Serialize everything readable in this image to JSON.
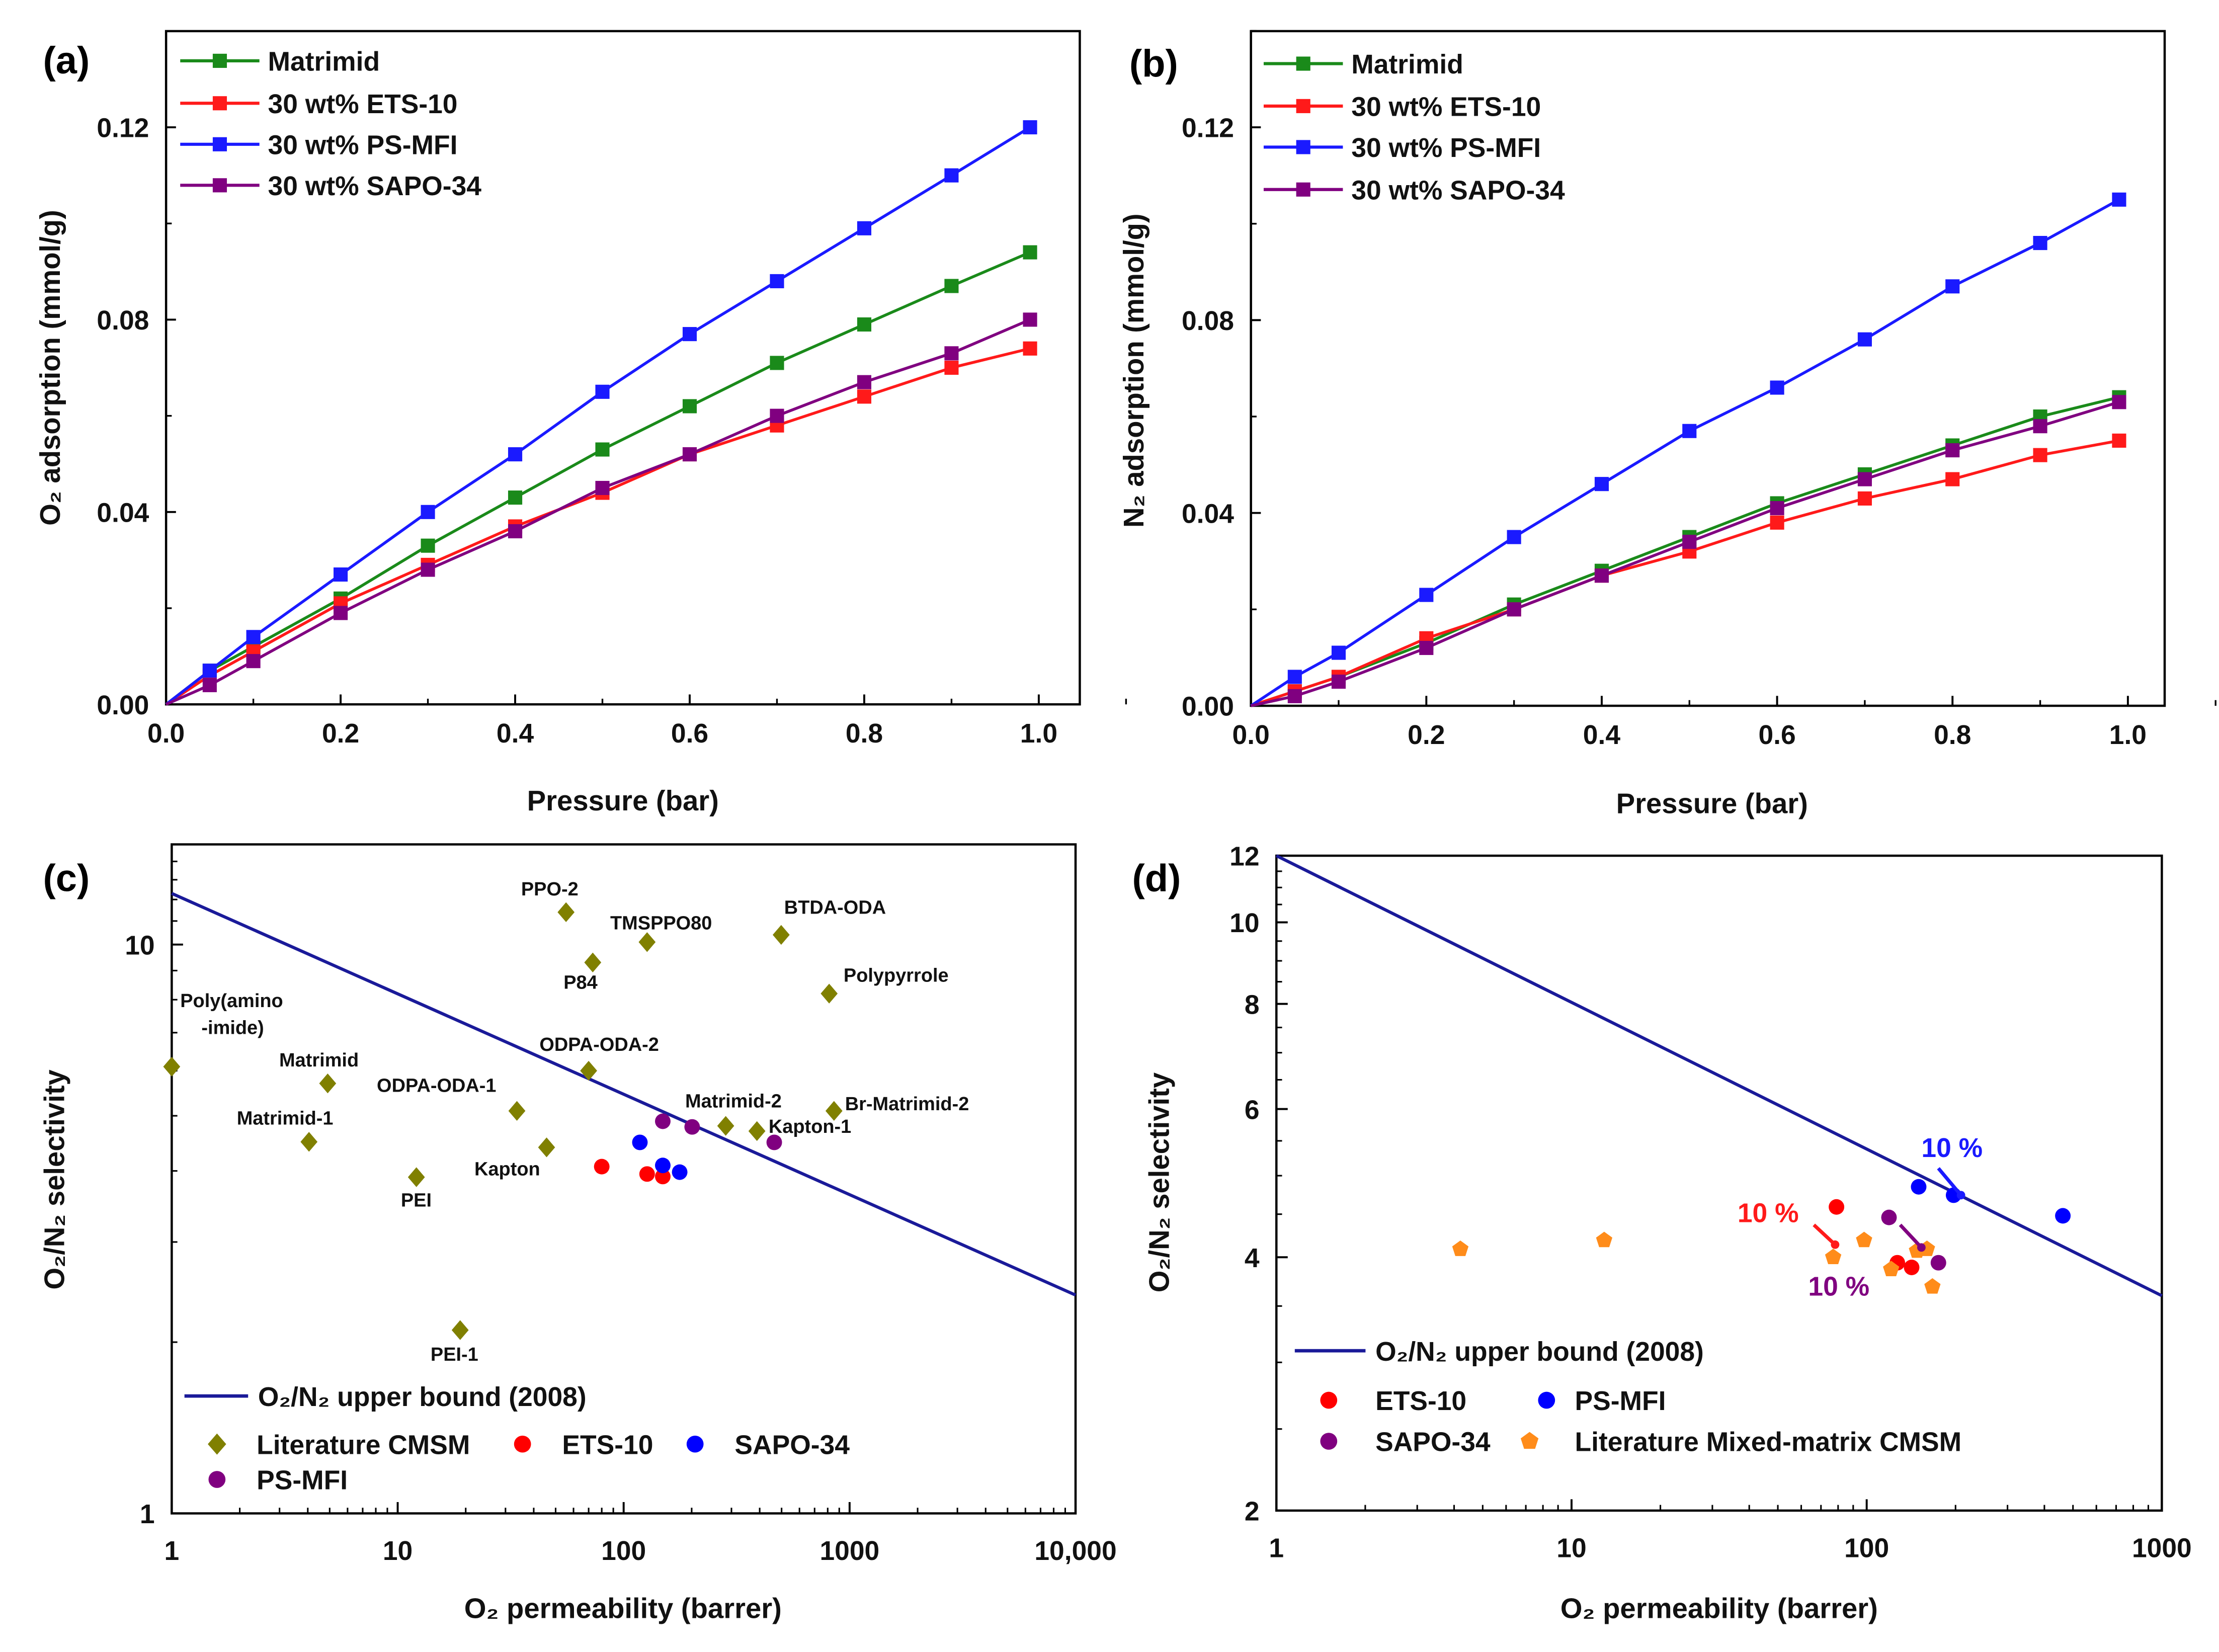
{
  "chart_data": [
    {
      "panel": "(a)",
      "type": "line",
      "xlabel": "Pressure (bar)",
      "ylabel": "O₂ adsorption (mmol/g)",
      "xlim": [
        0,
        1.05
      ],
      "ylim": [
        0,
        0.14
      ],
      "xticks": [
        "0.0",
        "0.2",
        "0.4",
        "0.6",
        "0.8",
        "1.0"
      ],
      "yticks": [
        "0.00",
        "0.04",
        "0.08",
        "0.12"
      ],
      "legend_position": "top-left",
      "x": [
        0,
        0.05,
        0.1,
        0.2,
        0.3,
        0.4,
        0.5,
        0.6,
        0.7,
        0.8,
        0.9,
        0.99
      ],
      "series": [
        {
          "name": "Matrimid",
          "color": "#1a8a1a",
          "values": [
            0,
            0.007,
            0.012,
            0.022,
            0.033,
            0.043,
            0.053,
            0.062,
            0.071,
            0.079,
            0.087,
            0.094
          ]
        },
        {
          "name": "30 wt% ETS-10",
          "color": "#ff1a1a",
          "values": [
            0,
            0.006,
            0.011,
            0.021,
            0.029,
            0.037,
            0.044,
            0.052,
            0.058,
            0.064,
            0.07,
            0.074
          ]
        },
        {
          "name": "30 wt% PS-MFI",
          "color": "#1a1aff",
          "values": [
            0,
            0.007,
            0.014,
            0.027,
            0.04,
            0.052,
            0.065,
            0.077,
            0.088,
            0.099,
            0.11,
            0.12
          ]
        },
        {
          "name": "30 wt% SAPO-34",
          "color": "#800080",
          "values": [
            0,
            0.004,
            0.009,
            0.019,
            0.028,
            0.036,
            0.045,
            0.052,
            0.06,
            0.067,
            0.073,
            0.08
          ]
        }
      ]
    },
    {
      "panel": "(b)",
      "type": "line",
      "xlabel": "Pressure (bar)",
      "ylabel": "N₂ adsorption (mmol/g)",
      "xlim": [
        0,
        1.04
      ],
      "ylim": [
        0,
        0.14
      ],
      "xticks": [
        "0.0",
        "0.2",
        "0.4",
        "0.6",
        "0.8",
        "1.0"
      ],
      "yticks": [
        "0.00",
        "0.04",
        "0.08",
        "0.12"
      ],
      "legend_position": "top-left",
      "x": [
        0,
        0.05,
        0.1,
        0.2,
        0.3,
        0.4,
        0.5,
        0.6,
        0.7,
        0.8,
        0.9,
        0.99
      ],
      "series": [
        {
          "name": "Matrimid",
          "color": "#1a8a1a",
          "values": [
            0,
            0.003,
            0.006,
            0.013,
            0.021,
            0.028,
            0.035,
            0.042,
            0.048,
            0.054,
            0.06,
            0.064
          ]
        },
        {
          "name": "30 wt% ETS-10",
          "color": "#ff1a1a",
          "values": [
            0,
            0.003,
            0.006,
            0.014,
            0.02,
            0.027,
            0.032,
            0.038,
            0.043,
            0.047,
            0.052,
            0.055
          ]
        },
        {
          "name": "30 wt% PS-MFI",
          "color": "#1a1aff",
          "values": [
            0,
            0.006,
            0.011,
            0.023,
            0.035,
            0.046,
            0.057,
            0.066,
            0.076,
            0.087,
            0.096,
            0.105
          ]
        },
        {
          "name": "30 wt% SAPO-34",
          "color": "#800080",
          "values": [
            0,
            0.002,
            0.005,
            0.012,
            0.02,
            0.027,
            0.034,
            0.041,
            0.047,
            0.053,
            0.058,
            0.063
          ]
        }
      ]
    },
    {
      "panel": "(c)",
      "type": "scatter",
      "xscale": "log",
      "yscale": "log",
      "xlabel": "O₂ permeability (barrer)",
      "ylabel": "O₂/N₂ selectivity",
      "xlim": [
        1,
        10000
      ],
      "ylim": [
        1,
        15
      ],
      "xticks": [
        "1",
        "10",
        "100",
        "1000",
        "10,000"
      ],
      "yticks": [
        "1",
        "10"
      ],
      "legend_position": "bottom-left",
      "upper_bound": {
        "name": "O₂/N₂ upper bound (2008)",
        "color": "#1a1a99",
        "x": [
          1,
          10000
        ],
        "y": [
          12.3,
          2.42
        ]
      },
      "series": [
        {
          "name": "Literature CMSM",
          "color": "#808000",
          "marker": "diamond",
          "points": [
            {
              "label": "Poly(amino\n-imide)",
              "x": 1,
              "y": 6.1
            },
            {
              "label": "Matrimid",
              "x": 4.9,
              "y": 5.7
            },
            {
              "label": "Matrimid-1",
              "x": 4.05,
              "y": 4.5
            },
            {
              "label": "PEI",
              "x": 12.1,
              "y": 3.9
            },
            {
              "label": "ODPA-ODA-1",
              "x": 33.7,
              "y": 5.1
            },
            {
              "label": "Kapton",
              "x": 45.6,
              "y": 4.4
            },
            {
              "label": "ODPA-ODA-2",
              "x": 70,
              "y": 6.0
            },
            {
              "label": "PPO-2",
              "x": 55.6,
              "y": 11.4
            },
            {
              "label": "P84",
              "x": 73,
              "y": 9.3
            },
            {
              "label": "TMSPPO80",
              "x": 127,
              "y": 10.1
            },
            {
              "label": "BTDA-ODA",
              "x": 498,
              "y": 10.4
            },
            {
              "label": "Polypyrrole",
              "x": 812,
              "y": 8.2
            },
            {
              "label": "Matrimid-2",
              "x": 283,
              "y": 4.8
            },
            {
              "label": "Kapton-1",
              "x": 389,
              "y": 4.7
            },
            {
              "label": "Br-Matrimid-2",
              "x": 853,
              "y": 5.1
            },
            {
              "label": "PEI-1",
              "x": 18.9,
              "y": 2.1
            }
          ]
        },
        {
          "name": "ETS-10",
          "color": "#ff0000",
          "marker": "circle",
          "points": [
            {
              "x": 80,
              "y": 4.07
            },
            {
              "x": 127,
              "y": 3.95
            },
            {
              "x": 149,
              "y": 3.91
            }
          ]
        },
        {
          "name": "SAPO-34",
          "color": "#0000ff",
          "marker": "circle",
          "points": [
            {
              "x": 118,
              "y": 4.49
            },
            {
              "x": 149,
              "y": 4.09
            },
            {
              "x": 177,
              "y": 3.98
            }
          ]
        },
        {
          "name": "PS-MFI",
          "color": "#800080",
          "marker": "circle",
          "points": [
            {
              "x": 149,
              "y": 4.89
            },
            {
              "x": 201,
              "y": 4.78
            },
            {
              "x": 464,
              "y": 4.49
            }
          ]
        }
      ]
    },
    {
      "panel": "(d)",
      "type": "scatter",
      "xscale": "log",
      "yscale": "log",
      "xlabel": "O₂ permeability (barrer)",
      "ylabel": "O₂/N₂ selectivity",
      "xlim": [
        1,
        1000
      ],
      "ylim": [
        2,
        12
      ],
      "xticks": [
        "1",
        "10",
        "100",
        "1000"
      ],
      "yticks": [
        "2",
        "4",
        "6",
        "8",
        "10",
        "12"
      ],
      "legend_position": "bottom-left",
      "upper_bound": {
        "name": "O₂/N₂ upper bound (2008)",
        "color": "#1a1a99",
        "x": [
          1,
          1000
        ],
        "y": [
          12,
          3.6
        ]
      },
      "series": [
        {
          "name": "ETS-10",
          "color": "#ff0000",
          "marker": "circle",
          "points": [
            {
              "x": 79,
              "y": 4.59
            },
            {
              "x": 127,
              "y": 3.94
            },
            {
              "x": 142,
              "y": 3.89
            }
          ]
        },
        {
          "name": "PS-MFI",
          "color": "#0000ff",
          "marker": "circle",
          "points": [
            {
              "x": 150,
              "y": 4.85
            },
            {
              "x": 197,
              "y": 4.74
            },
            {
              "x": 462,
              "y": 4.48
            }
          ]
        },
        {
          "name": "SAPO-34",
          "color": "#800080",
          "marker": "circle",
          "points": [
            {
              "x": 119,
              "y": 4.46
            },
            {
              "x": 175,
              "y": 3.94
            }
          ]
        },
        {
          "name": "Literature Mixed-matrix CMSM",
          "color": "#ff8c1a",
          "marker": "pentagon",
          "points": [
            {
              "x": 4.2,
              "y": 4.09
            },
            {
              "x": 12.9,
              "y": 4.19
            },
            {
              "x": 77,
              "y": 4.0
            },
            {
              "x": 98,
              "y": 4.19
            },
            {
              "x": 121,
              "y": 3.87
            },
            {
              "x": 148,
              "y": 4.07
            },
            {
              "x": 160,
              "y": 4.09
            },
            {
              "x": 167,
              "y": 3.69
            }
          ]
        }
      ],
      "annotations": [
        {
          "text": "10 %",
          "color": "#1a1aff"
        },
        {
          "text": "10 %",
          "color": "#ff1a1a"
        },
        {
          "text": "10 %",
          "color": "#800080"
        }
      ]
    }
  ]
}
